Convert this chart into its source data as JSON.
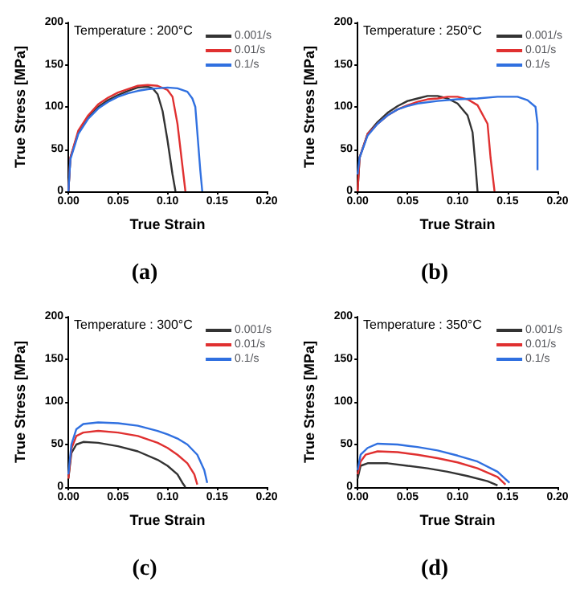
{
  "chart_data": [
    {
      "type": "line",
      "xlabel": "True Strain",
      "ylabel": "True Stress [MPa]",
      "annotations": [
        "Temperature : 200°C",
        "(a)"
      ],
      "legend": "top right",
      "grid": false,
      "xlim": [
        0,
        0.2
      ],
      "xticks": [
        {
          "value": 0,
          "label": "0.00"
        },
        {
          "value": 0.05,
          "label": "0.05"
        },
        {
          "value": 0.1,
          "label": "0.10"
        },
        {
          "value": 0.15,
          "label": "0.15"
        },
        {
          "value": 0.2,
          "label": "0.20"
        }
      ],
      "ylim": [
        0,
        200
      ],
      "yticks": [
        0,
        50,
        100,
        150,
        200
      ],
      "series": [
        {
          "name": "0.001/s",
          "color": "#333333",
          "x": [
            0,
            0.002,
            0.01,
            0.02,
            0.03,
            0.04,
            0.05,
            0.06,
            0.07,
            0.08,
            0.085,
            0.09,
            0.095,
            0.1,
            0.105,
            0.108
          ],
          "values": [
            0,
            40,
            70,
            88,
            100,
            108,
            114,
            119,
            123,
            124,
            122,
            115,
            95,
            60,
            20,
            0
          ]
        },
        {
          "name": "0.01/s",
          "color": "#e03030",
          "x": [
            0,
            0.002,
            0.01,
            0.02,
            0.03,
            0.04,
            0.05,
            0.06,
            0.07,
            0.08,
            0.09,
            0.1,
            0.105,
            0.11,
            0.115,
            0.118
          ],
          "values": [
            0,
            40,
            72,
            90,
            103,
            111,
            117,
            121,
            125,
            126,
            125,
            120,
            112,
            80,
            30,
            0
          ]
        },
        {
          "name": "0.1/s",
          "color": "#3070e0",
          "x": [
            0,
            0.002,
            0.01,
            0.02,
            0.03,
            0.04,
            0.05,
            0.06,
            0.07,
            0.08,
            0.09,
            0.1,
            0.11,
            0.12,
            0.125,
            0.128,
            0.13,
            0.133,
            0.135
          ],
          "values": [
            0,
            38,
            68,
            86,
            98,
            106,
            112,
            116,
            119,
            121,
            122,
            123,
            122,
            118,
            110,
            100,
            70,
            25,
            0
          ]
        }
      ]
    },
    {
      "type": "line",
      "xlabel": "True Strain",
      "ylabel": "True Stress [MPa]",
      "annotations": [
        "Temperature : 250°C",
        "(b)"
      ],
      "legend": "top right",
      "grid": false,
      "xlim": [
        0,
        0.2
      ],
      "xticks": [
        {
          "value": 0,
          "label": "0.00"
        },
        {
          "value": 0.05,
          "label": "0.05"
        },
        {
          "value": 0.1,
          "label": "0.10"
        },
        {
          "value": 0.15,
          "label": "0.15"
        },
        {
          "value": 0.2,
          "label": "0.20"
        }
      ],
      "ylim": [
        0,
        200
      ],
      "yticks": [
        0,
        50,
        100,
        150,
        200
      ],
      "series": [
        {
          "name": "0.001/s",
          "color": "#333333",
          "x": [
            0,
            0.002,
            0.01,
            0.02,
            0.03,
            0.04,
            0.05,
            0.06,
            0.07,
            0.08,
            0.09,
            0.1,
            0.11,
            0.115,
            0.118,
            0.12
          ],
          "values": [
            0,
            40,
            68,
            82,
            93,
            101,
            107,
            110,
            113,
            113,
            110,
            104,
            90,
            70,
            30,
            0
          ]
        },
        {
          "name": "0.01/s",
          "color": "#e03030",
          "x": [
            0,
            0.002,
            0.01,
            0.02,
            0.03,
            0.04,
            0.05,
            0.06,
            0.07,
            0.08,
            0.09,
            0.1,
            0.11,
            0.12,
            0.13,
            0.133,
            0.137
          ],
          "values": [
            0,
            40,
            68,
            80,
            90,
            97,
            102,
            106,
            109,
            110,
            112,
            112,
            109,
            102,
            80,
            40,
            0
          ]
        },
        {
          "name": "0.1/s",
          "color": "#3070e0",
          "x": [
            0,
            0.002,
            0.01,
            0.02,
            0.03,
            0.04,
            0.05,
            0.06,
            0.08,
            0.1,
            0.12,
            0.14,
            0.16,
            0.17,
            0.178,
            0.18,
            0.18
          ],
          "values": [
            20,
            40,
            66,
            80,
            90,
            97,
            101,
            104,
            107,
            109,
            110,
            112,
            112,
            108,
            100,
            80,
            25
          ]
        }
      ]
    },
    {
      "type": "line",
      "xlabel": "True Strain",
      "ylabel": "True Stress [MPa]",
      "annotations": [
        "Temperature : 300°C",
        "(c)"
      ],
      "legend": "top right",
      "grid": false,
      "xlim": [
        0,
        0.2
      ],
      "xticks": [
        {
          "value": 0,
          "label": "0.00"
        },
        {
          "value": 0.05,
          "label": "0.05"
        },
        {
          "value": 0.1,
          "label": "0.10"
        },
        {
          "value": 0.15,
          "label": "0.15"
        },
        {
          "value": 0.2,
          "label": "0.20"
        }
      ],
      "ylim": [
        0,
        200
      ],
      "yticks": [
        0,
        50,
        100,
        150,
        200
      ],
      "series": [
        {
          "name": "0.001/s",
          "color": "#333333",
          "x": [
            0,
            0.003,
            0.008,
            0.015,
            0.03,
            0.05,
            0.07,
            0.09,
            0.1,
            0.11,
            0.115,
            0.118
          ],
          "values": [
            10,
            40,
            50,
            53,
            52,
            48,
            42,
            32,
            25,
            15,
            5,
            0
          ]
        },
        {
          "name": "0.01/s",
          "color": "#e03030",
          "x": [
            0,
            0.003,
            0.008,
            0.015,
            0.03,
            0.05,
            0.07,
            0.09,
            0.1,
            0.11,
            0.12,
            0.127,
            0.13
          ],
          "values": [
            10,
            45,
            60,
            64,
            66,
            64,
            60,
            52,
            46,
            38,
            28,
            15,
            3
          ]
        },
        {
          "name": "0.1/s",
          "color": "#3070e0",
          "x": [
            0,
            0.003,
            0.008,
            0.015,
            0.03,
            0.05,
            0.07,
            0.09,
            0.1,
            0.11,
            0.12,
            0.13,
            0.137,
            0.14
          ],
          "values": [
            15,
            50,
            68,
            74,
            76,
            75,
            72,
            66,
            62,
            57,
            50,
            38,
            20,
            5
          ]
        }
      ]
    },
    {
      "type": "line",
      "xlabel": "True Strain",
      "ylabel": "True Stress [MPa]",
      "annotations": [
        "Temperature : 350°C",
        "(d)"
      ],
      "legend": "top right",
      "grid": false,
      "xlim": [
        0,
        0.2
      ],
      "xticks": [
        {
          "value": 0,
          "label": "0.00"
        },
        {
          "value": 0.05,
          "label": "0.05"
        },
        {
          "value": 0.1,
          "label": "0.10"
        },
        {
          "value": 0.15,
          "label": "0.15"
        },
        {
          "value": 0.2,
          "label": "0.20"
        }
      ],
      "ylim": [
        0,
        200
      ],
      "yticks": [
        0,
        50,
        100,
        150,
        200
      ],
      "series": [
        {
          "name": "0.001/s",
          "color": "#333333",
          "x": [
            0,
            0.003,
            0.01,
            0.03,
            0.05,
            0.07,
            0.09,
            0.11,
            0.13,
            0.14
          ],
          "values": [
            10,
            25,
            28,
            28,
            25,
            22,
            18,
            13,
            7,
            2
          ]
        },
        {
          "name": "0.01/s",
          "color": "#e03030",
          "x": [
            0,
            0.003,
            0.008,
            0.02,
            0.04,
            0.06,
            0.08,
            0.1,
            0.12,
            0.14,
            0.148
          ],
          "values": [
            15,
            30,
            38,
            42,
            41,
            38,
            34,
            29,
            22,
            12,
            3
          ]
        },
        {
          "name": "0.1/s",
          "color": "#3070e0",
          "x": [
            0,
            0.003,
            0.01,
            0.02,
            0.04,
            0.06,
            0.08,
            0.1,
            0.12,
            0.14,
            0.152
          ],
          "values": [
            20,
            38,
            46,
            51,
            50,
            47,
            43,
            37,
            30,
            18,
            5
          ]
        }
      ]
    }
  ]
}
